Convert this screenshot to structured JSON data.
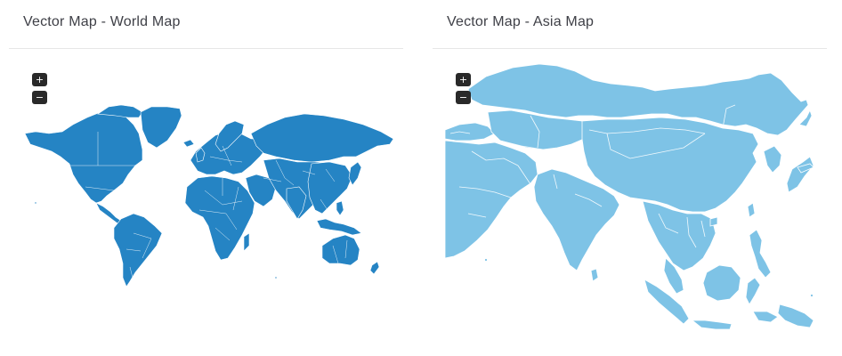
{
  "cards": [
    {
      "title": "Vector Map - World Map",
      "zoom_in_label": "+",
      "zoom_out_label": "−",
      "map_color": "#2584c4"
    },
    {
      "title": "Vector Map - Asia Map",
      "zoom_in_label": "+",
      "zoom_out_label": "−",
      "map_color": "#7ec3e6"
    }
  ]
}
